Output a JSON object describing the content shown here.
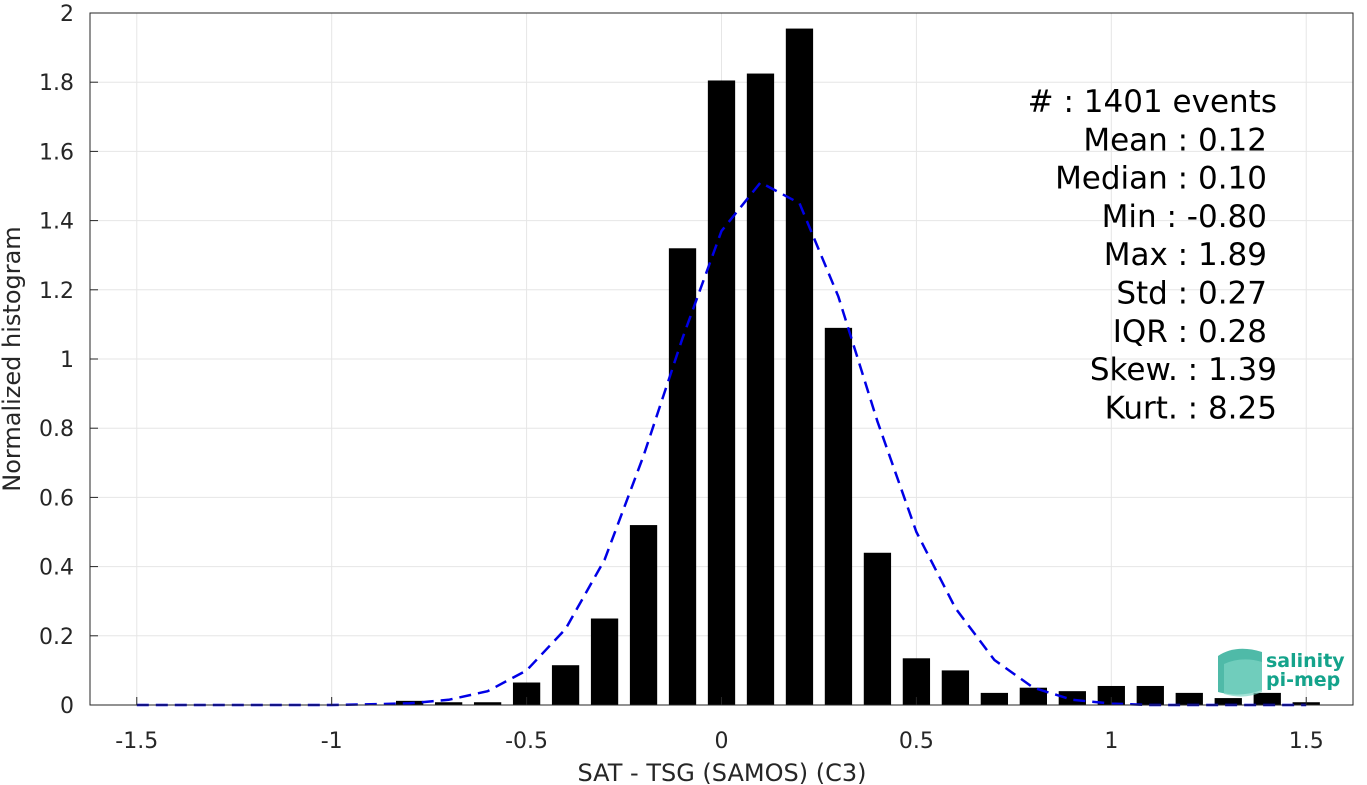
{
  "chart_data": {
    "type": "bar",
    "xlabel": "SAT - TSG (SAMOS) (C3)",
    "ylabel": "Normalized histogram",
    "xlim": [
      -1.62,
      1.62
    ],
    "ylim": [
      0,
      2
    ],
    "grid": true,
    "x_ticks": [
      -1.5,
      -1,
      -0.5,
      0,
      0.5,
      1,
      1.5
    ],
    "x_tick_labels": [
      "-1.5",
      "-1",
      "-0.5",
      "0",
      "0.5",
      "1",
      "1.5"
    ],
    "y_ticks": [
      0,
      0.2,
      0.4,
      0.6,
      0.8,
      1,
      1.2,
      1.4,
      1.6,
      1.8,
      2
    ],
    "y_tick_labels": [
      "0",
      "0.2",
      "0.4",
      "0.6",
      "0.8",
      "1",
      "1.2",
      "1.4",
      "1.6",
      "1.8",
      "2"
    ],
    "bar_width": 0.07,
    "bars": {
      "x": [
        -0.8,
        -0.7,
        -0.6,
        -0.5,
        -0.4,
        -0.3,
        -0.2,
        -0.1,
        0.0,
        0.1,
        0.2,
        0.3,
        0.4,
        0.5,
        0.6,
        0.7,
        0.8,
        0.9,
        1.0,
        1.1,
        1.2,
        1.3,
        1.4,
        1.5
      ],
      "values": [
        0.012,
        0.008,
        0.008,
        0.065,
        0.115,
        0.25,
        0.52,
        1.32,
        1.805,
        1.825,
        1.955,
        1.09,
        0.44,
        0.135,
        0.1,
        0.035,
        0.05,
        0.04,
        0.055,
        0.055,
        0.035,
        0.02,
        0.035,
        0.008
      ],
      "color": "#000000"
    },
    "fit_curve": {
      "style": "dashed",
      "color": "#0000e6",
      "x": [
        -1.5,
        -1.4,
        -1.3,
        -1.2,
        -1.1,
        -1.0,
        -0.9,
        -0.8,
        -0.7,
        -0.6,
        -0.5,
        -0.4,
        -0.3,
        -0.2,
        -0.1,
        0.0,
        0.1,
        0.2,
        0.3,
        0.4,
        0.5,
        0.6,
        0.7,
        0.8,
        0.9,
        1.0,
        1.1,
        1.2,
        1.3,
        1.4,
        1.5
      ],
      "y": [
        0.0,
        0.0,
        0.0,
        0.0,
        0.0,
        0.0,
        0.002,
        0.005,
        0.015,
        0.04,
        0.1,
        0.22,
        0.42,
        0.72,
        1.06,
        1.37,
        1.51,
        1.45,
        1.18,
        0.82,
        0.5,
        0.28,
        0.13,
        0.05,
        0.015,
        0.004,
        0.0,
        0.0,
        0.0,
        0.0,
        0.0
      ]
    },
    "annotations": [
      "#  : 1401 events",
      "Mean : 0.12",
      "Median : 0.10",
      "Min : -0.80",
      "Max : 1.89",
      "Std : 0.27",
      "IQR : 0.28",
      "Skew. : 1.39",
      "Kurt. : 8.25"
    ]
  },
  "logo": {
    "line1": "salinity",
    "line2": "pi-mep",
    "color": "#14a38b"
  }
}
